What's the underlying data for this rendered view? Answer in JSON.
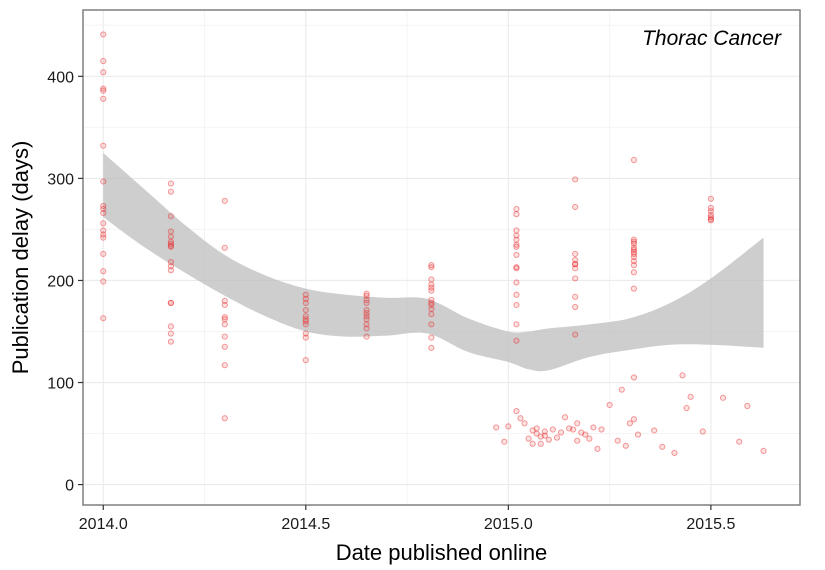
{
  "chart_data": {
    "type": "scatter",
    "title": "",
    "panel_label": "Thorac Cancer",
    "xlabel": "Date published online",
    "ylabel": "Publication delay (days)",
    "xlim": [
      2013.95,
      2015.72
    ],
    "ylim": [
      -20,
      465
    ],
    "x_ticks": [
      2014.0,
      2014.5,
      2015.0,
      2015.5
    ],
    "x_tick_labels": [
      "2014.0",
      "2014.5",
      "2015.0",
      "2015.5"
    ],
    "y_ticks": [
      0,
      100,
      200,
      300,
      400
    ],
    "y_tick_labels": [
      "0",
      "100",
      "200",
      "300",
      "400"
    ],
    "grid": true,
    "legend": "none",
    "colors": {
      "points": "#e8282b",
      "ribbon": "#bdbdbd",
      "grid_major": "#ebebeb",
      "grid_minor": "#f4f4f4",
      "border": "#7f7f7f"
    },
    "series": [
      {
        "kind": "points",
        "x": [
          2014.0,
          2014.0,
          2014.0,
          2014.0,
          2014.0,
          2014.0,
          2014.0,
          2014.0,
          2014.0,
          2014.0,
          2014.0,
          2014.0,
          2014.0,
          2014.0,
          2014.0,
          2014.0,
          2014.0,
          2014.0,
          2014.0,
          2014.167,
          2014.167,
          2014.167,
          2014.167,
          2014.167,
          2014.167,
          2014.167,
          2014.167,
          2014.167,
          2014.167,
          2014.167,
          2014.167,
          2014.167,
          2014.167,
          2014.167,
          2014.167,
          2014.167,
          2014.3,
          2014.3,
          2014.3,
          2014.3,
          2014.3,
          2014.3,
          2014.3,
          2014.3,
          2014.3,
          2014.3,
          2014.3,
          2014.5,
          2014.5,
          2014.5,
          2014.5,
          2014.5,
          2014.5,
          2014.5,
          2014.5,
          2014.5,
          2014.5,
          2014.5,
          2014.65,
          2014.65,
          2014.65,
          2014.65,
          2014.65,
          2014.65,
          2014.65,
          2014.65,
          2014.65,
          2014.65,
          2014.65,
          2014.81,
          2014.81,
          2014.81,
          2014.81,
          2014.81,
          2014.81,
          2014.81,
          2014.81,
          2014.81,
          2014.81,
          2014.81,
          2014.81,
          2014.81,
          2014.81,
          2015.02,
          2015.02,
          2015.02,
          2015.02,
          2015.02,
          2015.02,
          2015.02,
          2015.02,
          2015.02,
          2015.02,
          2015.02,
          2015.02,
          2015.02,
          2015.02,
          2015.02,
          2015.165,
          2015.165,
          2015.165,
          2015.165,
          2015.165,
          2015.165,
          2015.165,
          2015.165,
          2015.165,
          2015.165,
          2015.165,
          2015.31,
          2015.31,
          2015.31,
          2015.31,
          2015.31,
          2015.31,
          2015.31,
          2015.31,
          2015.31,
          2015.31,
          2015.31,
          2015.31,
          2015.31,
          2015.5,
          2015.5,
          2015.5,
          2015.5,
          2015.5,
          2015.5,
          2015.5,
          2014.97,
          2014.99,
          2015.0,
          2015.02,
          2015.03,
          2015.04,
          2015.05,
          2015.06,
          2015.06,
          2015.07,
          2015.07,
          2015.08,
          2015.08,
          2015.09,
          2015.09,
          2015.1,
          2015.11,
          2015.12,
          2015.13,
          2015.14,
          2015.15,
          2015.16,
          2015.17,
          2015.17,
          2015.18,
          2015.19,
          2015.2,
          2015.21,
          2015.22,
          2015.23,
          2015.25,
          2015.27,
          2015.28,
          2015.29,
          2015.3,
          2015.31,
          2015.31,
          2015.32,
          2015.36,
          2015.38,
          2015.41,
          2015.43,
          2015.44,
          2015.45,
          2015.48,
          2015.53,
          2015.57,
          2015.59,
          2015.63
        ],
        "y": [
          441,
          415,
          404,
          388,
          386,
          378,
          332,
          297,
          273,
          270,
          266,
          256,
          249,
          245,
          242,
          226,
          209,
          199,
          163,
          295,
          287,
          263,
          248,
          243,
          238,
          234,
          233,
          218,
          214,
          210,
          178,
          155,
          148,
          140,
          178,
          236,
          278,
          232,
          180,
          176,
          162,
          157,
          145,
          135,
          117,
          65,
          164,
          186,
          182,
          178,
          171,
          165,
          162,
          160,
          157,
          148,
          144,
          122,
          187,
          185,
          181,
          178,
          171,
          168,
          165,
          162,
          157,
          153,
          145,
          215,
          213,
          201,
          196,
          193,
          181,
          176,
          172,
          167,
          157,
          144,
          134,
          178,
          190,
          270,
          265,
          249,
          244,
          240,
          233,
          225,
          213,
          198,
          176,
          157,
          141,
          212,
          186,
          235,
          299,
          272,
          226,
          220,
          216,
          212,
          202,
          184,
          174,
          147,
          216,
          318,
          240,
          236,
          232,
          228,
          226,
          223,
          219,
          215,
          208,
          192,
          230,
          238,
          280,
          271,
          268,
          264,
          262,
          259,
          260,
          56,
          42,
          57,
          72,
          65,
          60,
          45,
          40,
          53,
          50,
          55,
          40,
          47,
          52,
          48,
          44,
          54,
          46,
          51,
          66,
          55,
          54,
          60,
          43,
          51,
          49,
          45,
          56,
          35,
          54,
          78,
          43,
          93,
          38,
          60,
          105,
          64,
          49,
          53,
          37,
          31,
          107,
          75,
          86,
          52,
          85,
          42,
          77,
          33
        ]
      }
    ],
    "smooth": {
      "x": [
        2014.0,
        2014.1,
        2014.2,
        2014.3,
        2014.4,
        2014.5,
        2014.6,
        2014.7,
        2014.8,
        2014.9,
        2015.0,
        2015.05,
        2015.1,
        2015.2,
        2015.3,
        2015.4,
        2015.5,
        2015.63
      ],
      "upper": [
        325,
        290,
        255,
        225,
        205,
        192,
        186,
        183,
        182,
        163,
        150,
        150,
        153,
        157,
        163,
        178,
        202,
        242
      ],
      "lower": [
        262,
        233,
        208,
        185,
        165,
        150,
        145,
        146,
        148,
        130,
        120,
        113,
        112,
        125,
        132,
        137,
        137,
        134
      ]
    }
  }
}
